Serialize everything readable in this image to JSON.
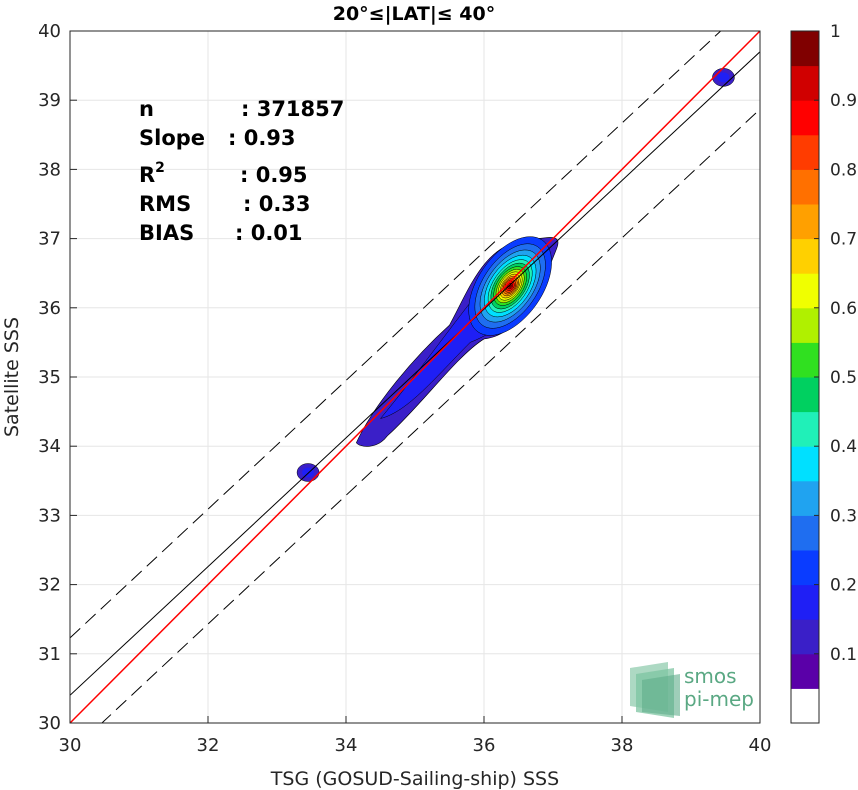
{
  "chart_data": {
    "type": "heatmap",
    "title": "20°≤|LAT|≤ 40°",
    "xlabel": "TSG (GOSUD-Sailing-ship) SSS",
    "ylabel": "Satellite SSS",
    "xlim": [
      30,
      40
    ],
    "ylim": [
      30,
      40
    ],
    "xticks": [
      "30",
      "32",
      "34",
      "36",
      "38",
      "40"
    ],
    "yticks": [
      "30",
      "31",
      "32",
      "33",
      "34",
      "35",
      "36",
      "37",
      "38",
      "39",
      "40"
    ],
    "grid": true,
    "stats": [
      {
        "label": "n",
        "value": ": 371857"
      },
      {
        "label": "Slope",
        "value": ": 0.93"
      },
      {
        "label": "R",
        "sup": "2",
        "value": ": 0.95"
      },
      {
        "label": "RMS",
        "value": ": 0.33"
      },
      {
        "label": "BIAS",
        "value": ": 0.01"
      }
    ],
    "identity_line": {
      "color": "#ff0000",
      "x": [
        30,
        40
      ],
      "y": [
        30,
        40
      ]
    },
    "regression_line": {
      "color": "#000000",
      "slope": 0.93,
      "intercept": 2.5
    },
    "band_lines": {
      "offset": 0.83,
      "style": "dashed"
    },
    "density_peak": {
      "x": 36.35,
      "y": 36.3,
      "value": 1.0
    },
    "density_blobs": [
      {
        "x": 33.45,
        "y": 33.62,
        "value": 0.08
      },
      {
        "x": 39.47,
        "y": 39.33,
        "value": 0.08
      }
    ],
    "colorbar": {
      "range": [
        0,
        1
      ],
      "ticks": [
        "0.1",
        "0.2",
        "0.3",
        "0.4",
        "0.5",
        "0.6",
        "0.7",
        "0.8",
        "0.9",
        "1"
      ],
      "levels": [
        "#ffffff",
        "#5a00a8",
        "#3a1fc8",
        "#1f1ff5",
        "#0a3cff",
        "#1f6ef0",
        "#20a3f0",
        "#00e0ff",
        "#20f0b8",
        "#00d060",
        "#30e020",
        "#b0f000",
        "#f0ff00",
        "#ffd000",
        "#ffa000",
        "#ff7000",
        "#ff3c00",
        "#ff0000",
        "#d00000",
        "#800000"
      ]
    },
    "logo": {
      "line1": "smos",
      "line2": "pi-mep"
    }
  }
}
